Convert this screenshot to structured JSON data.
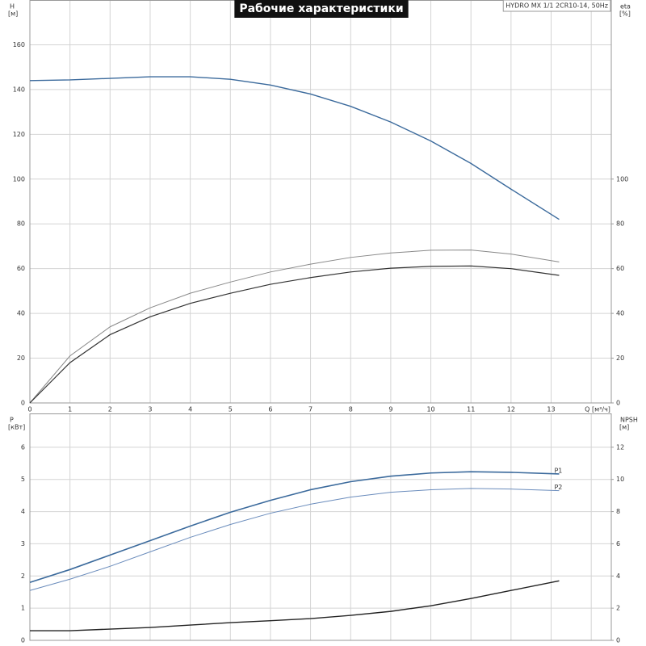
{
  "chart_data": [
    {
      "type": "line",
      "title": "Рабочие характеристики",
      "subtitle": "HYDRO MX 1/1 2CR10-14, 50Hz",
      "ylabel": "H",
      "yunit": "[м]",
      "y2label": "eta",
      "y2unit": "[%]",
      "x": [
        0,
        1,
        2,
        3,
        4,
        5,
        6,
        7,
        8,
        9,
        10,
        11,
        12,
        13.2
      ],
      "xlim": [
        0,
        14.5
      ],
      "xticks": [
        0,
        1,
        2,
        3,
        4,
        5,
        6,
        7,
        8,
        9,
        10,
        11,
        12,
        13,
        {
          "value": 14,
          "label": "Q [м³/ч]"
        }
      ],
      "xtick_labels": true,
      "ylim": [
        0,
        180
      ],
      "yticks": [
        0,
        20,
        40,
        60,
        80,
        100,
        120,
        140,
        160
      ],
      "y2lim": [
        0,
        180
      ],
      "y2ticks": [
        0,
        20,
        40,
        60,
        80,
        100
      ],
      "grid": true,
      "series": [
        {
          "color": "#3b6a9c",
          "width": 1.4,
          "values": [
            144,
            144.3,
            145,
            145.7,
            145.7,
            144.6,
            142,
            138,
            132.5,
            125.5,
            117,
            107,
            95.5,
            82
          ]
        },
        {
          "color": "#888888",
          "width": 1,
          "axis": "y2",
          "values": [
            0,
            21,
            34,
            42.5,
            49,
            54,
            58.5,
            62,
            65,
            67,
            68.2,
            68.3,
            66.5,
            63
          ]
        },
        {
          "color": "#333333",
          "width": 1.2,
          "axis": "y2",
          "values": [
            0,
            18,
            30.5,
            38.5,
            44.5,
            49,
            53,
            56,
            58.5,
            60.2,
            61,
            61.2,
            60,
            57
          ]
        }
      ]
    },
    {
      "type": "line",
      "ylabel": "P",
      "yunit": "[кВт]",
      "y2label": "NPSH",
      "y2unit": "[м]",
      "x": [
        0,
        1,
        2,
        3,
        4,
        5,
        6,
        7,
        8,
        9,
        10,
        11,
        12,
        13.2
      ],
      "xlim": [
        0,
        14.5
      ],
      "xticks": [
        0,
        1,
        2,
        3,
        4,
        5,
        6,
        7,
        8,
        9,
        10,
        11,
        12,
        13,
        14
      ],
      "xtick_labels": false,
      "ylim": [
        0,
        7.05
      ],
      "yticks": [
        0,
        1,
        2,
        3,
        4,
        5,
        6
      ],
      "y2lim": [
        0,
        14.1
      ],
      "y2ticks": [
        0,
        2,
        4,
        6,
        8,
        10,
        12
      ],
      "grid": true,
      "series": [
        {
          "name": "P1",
          "color": "#3b6a9c",
          "width": 1.6,
          "values": [
            1.8,
            2.2,
            2.65,
            3.1,
            3.55,
            3.98,
            4.35,
            4.68,
            4.93,
            5.1,
            5.2,
            5.24,
            5.22,
            5.17
          ]
        },
        {
          "name": "P2",
          "color": "#6a8cbc",
          "width": 1,
          "values": [
            1.55,
            1.9,
            2.3,
            2.75,
            3.2,
            3.6,
            3.95,
            4.23,
            4.45,
            4.6,
            4.68,
            4.72,
            4.7,
            4.65
          ]
        },
        {
          "color": "#222222",
          "width": 1.4,
          "axis": "y2",
          "values": [
            0.6,
            0.6,
            0.7,
            0.8,
            0.95,
            1.1,
            1.22,
            1.35,
            1.55,
            1.8,
            2.15,
            2.6,
            3.1,
            3.7
          ]
        }
      ]
    }
  ]
}
